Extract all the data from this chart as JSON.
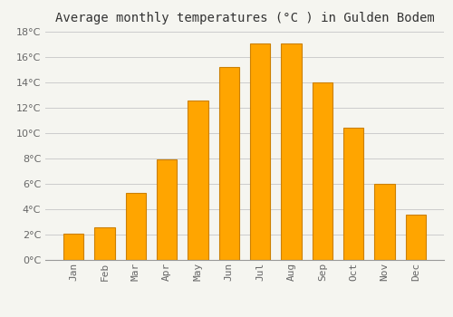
{
  "title": "Average monthly temperatures (°C ) in Gulden Bodem",
  "months": [
    "Jan",
    "Feb",
    "Mar",
    "Apr",
    "May",
    "Jun",
    "Jul",
    "Aug",
    "Sep",
    "Oct",
    "Nov",
    "Dec"
  ],
  "values": [
    2.1,
    2.6,
    5.3,
    7.9,
    12.6,
    15.2,
    17.1,
    17.1,
    14.0,
    10.4,
    6.0,
    3.6
  ],
  "bar_color": "#FFA500",
  "bar_edge_color": "#CC8000",
  "background_color": "#F5F5F0",
  "plot_bg_color": "#F5F5F0",
  "grid_color": "#CCCCCC",
  "title_fontsize": 10,
  "tick_fontsize": 8,
  "ylim": [
    0,
    18
  ],
  "yticks": [
    0,
    2,
    4,
    6,
    8,
    10,
    12,
    14,
    16,
    18
  ]
}
